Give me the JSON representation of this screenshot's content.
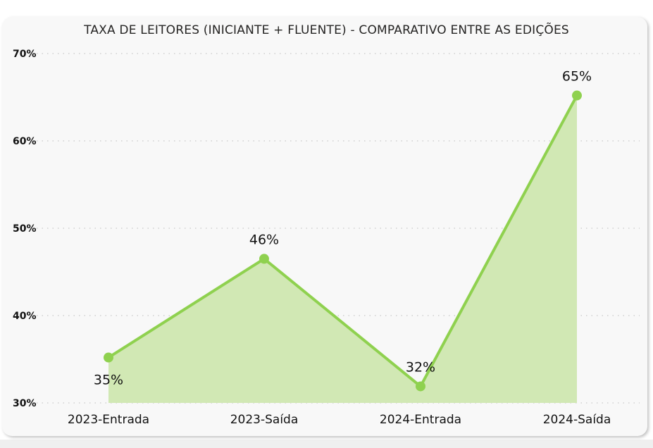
{
  "chart_data": {
    "type": "area",
    "title": "TAXA DE LEITORES (INICIANTE + FLUENTE) - COMPARATIVO ENTRE AS EDIÇÕES",
    "xlabel": "",
    "ylabel": "",
    "categories": [
      "2023-Entrada",
      "2023-Saída",
      "2024-Entrada",
      "2024-Saída"
    ],
    "values": [
      35.2,
      46.5,
      31.9,
      65.2
    ],
    "data_labels": [
      "35%",
      "46%",
      "32%",
      "65%"
    ],
    "ylim": [
      30,
      70
    ],
    "yticks": [
      30,
      40,
      50,
      60,
      70
    ],
    "ytick_labels": [
      "30%",
      "40%",
      "50%",
      "60%",
      "70%"
    ],
    "grid": true,
    "legend": "none",
    "colors": {
      "line": "#8fd14f",
      "fill": "#d1e8b4"
    }
  }
}
